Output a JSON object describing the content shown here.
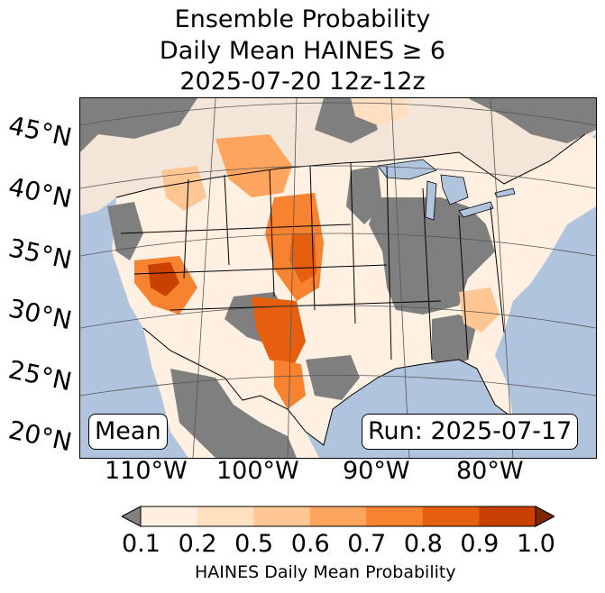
{
  "title": {
    "line1": "Ensemble Probability",
    "line2": "Daily Mean HAINES ≥ 6",
    "line3": "2025-07-20 12z-12z"
  },
  "map": {
    "region": "Continental United States",
    "lat_labels": [
      "45°N",
      "40°N",
      "35°N",
      "30°N",
      "25°N",
      "20°N"
    ],
    "lon_labels": [
      "110°W",
      "100°W",
      "90°W",
      "80°W"
    ],
    "stat_label": "Mean",
    "run_label": "Run: 2025-07-17",
    "colors": {
      "ocean": "#b0c4de",
      "no_data": "#7f7f7f",
      "land_low": "#fff5eb"
    }
  },
  "colorbar": {
    "label": "HAINES Daily Mean Probability",
    "ticks": [
      "0.1",
      "0.2",
      "0.5",
      "0.6",
      "0.7",
      "0.8",
      "0.9",
      "1.0"
    ],
    "bins": [
      {
        "from": 0.1,
        "to": 0.2,
        "color": "#fff0e2"
      },
      {
        "from": 0.2,
        "to": 0.5,
        "color": "#fee0c1"
      },
      {
        "from": 0.5,
        "to": 0.6,
        "color": "#fdc692"
      },
      {
        "from": 0.6,
        "to": 0.7,
        "color": "#fda55f"
      },
      {
        "from": 0.7,
        "to": 0.8,
        "color": "#f7822f"
      },
      {
        "from": 0.8,
        "to": 0.9,
        "color": "#e55f0f"
      },
      {
        "from": 0.9,
        "to": 1.0,
        "color": "#c84103"
      }
    ],
    "under_color": "#808080",
    "over_color": "#7f2704"
  }
}
